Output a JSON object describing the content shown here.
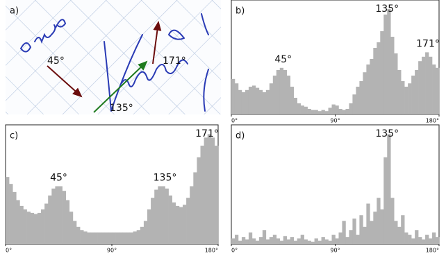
{
  "image_panel": {
    "label": "a)",
    "annotations": [
      "45°",
      "135°",
      "171°"
    ]
  },
  "chart_data": [
    {
      "type": "histogram",
      "label": "b)",
      "color": "#b3b3b3",
      "bins": [
        0,
        3,
        6,
        9,
        12,
        15,
        18,
        21,
        24,
        27,
        30,
        33,
        36,
        39,
        42,
        45,
        48,
        51,
        54,
        57,
        60,
        63,
        66,
        69,
        72,
        75,
        78,
        81,
        84,
        87,
        90,
        93,
        96,
        99,
        102,
        105,
        108,
        111,
        114,
        117,
        120,
        123,
        126,
        129,
        132,
        135,
        138,
        141,
        144,
        147,
        150,
        153,
        156,
        159,
        162,
        165,
        168,
        171,
        174,
        177,
        180
      ],
      "values": [
        32,
        28,
        22,
        20,
        22,
        25,
        26,
        24,
        22,
        20,
        22,
        28,
        35,
        40,
        42,
        40,
        35,
        25,
        15,
        10,
        8,
        7,
        5,
        4,
        4,
        3,
        4,
        3,
        6,
        9,
        8,
        5,
        4,
        5,
        10,
        18,
        25,
        30,
        38,
        45,
        50,
        60,
        65,
        75,
        90,
        95,
        70,
        55,
        40,
        30,
        25,
        28,
        35,
        40,
        48,
        52,
        56,
        52,
        45,
        42
      ],
      "xlim": [
        0,
        180
      ],
      "ylim": [
        0,
        100
      ],
      "xticks": [
        {
          "value": 0,
          "label": "0°"
        },
        {
          "value": 90,
          "label": "90°"
        },
        {
          "value": 180,
          "label": "180°"
        }
      ],
      "annotations": [
        {
          "label": "45°",
          "x": 45
        },
        {
          "label": "135°",
          "x": 135
        },
        {
          "label": "171°",
          "x": 171
        }
      ]
    },
    {
      "type": "histogram",
      "label": "c)",
      "color": "#b3b3b3",
      "bins": [
        0,
        3,
        6,
        9,
        12,
        15,
        18,
        21,
        24,
        27,
        30,
        33,
        36,
        39,
        42,
        45,
        48,
        51,
        54,
        57,
        60,
        63,
        66,
        69,
        72,
        75,
        78,
        81,
        84,
        87,
        90,
        93,
        96,
        99,
        102,
        105,
        108,
        111,
        114,
        117,
        120,
        123,
        126,
        129,
        132,
        135,
        138,
        141,
        144,
        147,
        150,
        153,
        156,
        159,
        162,
        165,
        168,
        171,
        174,
        177,
        180
      ],
      "values": [
        58,
        52,
        45,
        38,
        33,
        30,
        28,
        27,
        26,
        27,
        30,
        35,
        42,
        48,
        50,
        50,
        46,
        38,
        28,
        20,
        15,
        12,
        11,
        10,
        10,
        10,
        10,
        10,
        10,
        10,
        10,
        10,
        10,
        10,
        10,
        10,
        11,
        12,
        15,
        20,
        30,
        40,
        47,
        50,
        50,
        48,
        42,
        36,
        33,
        32,
        34,
        40,
        50,
        62,
        75,
        85,
        92,
        95,
        92,
        85
      ],
      "xlim": [
        0,
        180
      ],
      "ylim": [
        0,
        100
      ],
      "xticks": [
        {
          "value": 0,
          "label": "0°"
        },
        {
          "value": 90,
          "label": "90°"
        },
        {
          "value": 180,
          "label": "180°"
        }
      ],
      "annotations": [
        {
          "label": "45°",
          "x": 45
        },
        {
          "label": "135°",
          "x": 135
        },
        {
          "label": "171°",
          "x": 171
        }
      ]
    },
    {
      "type": "histogram",
      "label": "d)",
      "color": "#b3b3b3",
      "bins": [
        0,
        3,
        6,
        9,
        12,
        15,
        18,
        21,
        24,
        27,
        30,
        33,
        36,
        39,
        42,
        45,
        48,
        51,
        54,
        57,
        60,
        63,
        66,
        69,
        72,
        75,
        78,
        81,
        84,
        87,
        90,
        93,
        96,
        99,
        102,
        105,
        108,
        111,
        114,
        117,
        120,
        123,
        126,
        129,
        132,
        135,
        138,
        141,
        144,
        147,
        150,
        153,
        156,
        159,
        162,
        165,
        168,
        171,
        174,
        177,
        180
      ],
      "values": [
        5,
        8,
        3,
        6,
        4,
        10,
        5,
        3,
        6,
        12,
        4,
        6,
        8,
        5,
        3,
        7,
        4,
        6,
        3,
        5,
        8,
        4,
        3,
        2,
        5,
        3,
        6,
        4,
        3,
        8,
        5,
        10,
        20,
        6,
        12,
        22,
        8,
        25,
        15,
        35,
        20,
        28,
        40,
        30,
        75,
        95,
        40,
        20,
        15,
        25,
        10,
        8,
        5,
        12,
        6,
        4,
        8,
        5,
        10,
        6
      ],
      "xlim": [
        0,
        180
      ],
      "ylim": [
        0,
        100
      ],
      "xticks": [
        {
          "value": 0,
          "label": "0°"
        },
        {
          "value": 90,
          "label": "90°"
        },
        {
          "value": 180,
          "label": "180°"
        }
      ],
      "annotations": [
        {
          "label": "135°",
          "x": 135
        }
      ]
    }
  ]
}
